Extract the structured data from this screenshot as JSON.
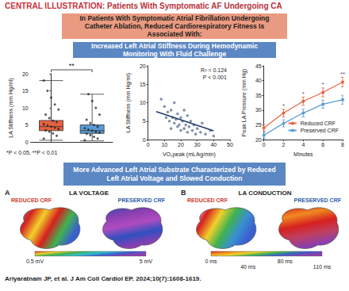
{
  "header": {
    "label": "CENTRAL ILLUSTRATION:",
    "title": "Patients With Symptomatic AF Undergoing CA"
  },
  "intro": "In Patients With Symptomatic Atrial Fibrillation Undergoing Catheter Ablation, Reduced Cardiorespiratory Fitness Is Associated With:",
  "section1": "Increased Left Atrial Stiffness During Hemodynamic Monitoring With Fluid Challenge",
  "chart_data": [
    {
      "type": "boxplot",
      "ylabel": "LA Stiffness (mm Hg/ml)",
      "categories": [
        null,
        null
      ],
      "series": [
        {
          "color": "#e8623f",
          "box": [
            0.5,
            3.3,
            4.5,
            6.3,
            18
          ],
          "points": [
            1,
            1.8,
            2.5,
            3,
            3.4,
            3.8,
            4.2,
            4.5,
            4.8,
            5.2,
            5.8,
            6.2,
            7,
            8,
            9.5,
            11,
            13,
            15,
            18
          ]
        },
        {
          "color": "#5b9bd5",
          "box": [
            0.3,
            2.5,
            3.3,
            5,
            14
          ],
          "points": [
            0.5,
            1,
            1.5,
            2,
            2.4,
            2.8,
            3,
            3.3,
            3.6,
            4,
            4.5,
            5,
            5.5,
            6.5,
            8,
            10,
            12,
            14
          ]
        }
      ],
      "ylim": [
        0,
        20
      ],
      "yticks": [
        0,
        5,
        10,
        15,
        20
      ],
      "annotation": "**"
    },
    {
      "type": "scatter",
      "xlabel": "VO₂peak (mL/kg/min)",
      "ylabel": "LA Stiffness (mm Hg/ml)",
      "color": "#6f7f99",
      "points": [
        [
          8,
          11
        ],
        [
          10,
          9
        ],
        [
          11,
          6
        ],
        [
          12,
          7.5
        ],
        [
          13,
          5
        ],
        [
          14,
          8
        ],
        [
          14,
          3
        ],
        [
          15,
          6
        ],
        [
          16,
          4.5
        ],
        [
          16,
          10
        ],
        [
          17,
          5.5
        ],
        [
          18,
          3.5
        ],
        [
          18,
          7
        ],
        [
          19,
          4
        ],
        [
          20,
          6
        ],
        [
          20,
          2.5
        ],
        [
          21,
          5
        ],
        [
          22,
          3
        ],
        [
          22,
          8
        ],
        [
          23,
          4
        ],
        [
          24,
          2
        ],
        [
          24,
          6.5
        ],
        [
          25,
          3.5
        ],
        [
          26,
          5
        ],
        [
          27,
          2.5
        ],
        [
          28,
          4
        ],
        [
          29,
          1.5
        ],
        [
          30,
          3
        ],
        [
          32,
          2
        ],
        [
          33,
          4.5
        ],
        [
          35,
          1.5
        ],
        [
          38,
          2.5
        ],
        [
          40,
          1
        ]
      ],
      "fit": {
        "x": [
          5,
          40
        ],
        "y": [
          7.6,
          2.4
        ],
        "color": "#1f3a6e"
      },
      "annotations": [
        "R² = 0.124",
        "P < 0.001"
      ],
      "xlim": [
        0,
        50
      ],
      "xticks": [
        0,
        10,
        20,
        30,
        40,
        50
      ],
      "ylim": [
        0,
        20
      ],
      "yticks": [
        0,
        5,
        10,
        15,
        20
      ]
    },
    {
      "type": "line",
      "xlabel": "Minutes",
      "ylabel": "Peak LA Pressure (mm Hg)",
      "x": [
        0,
        2,
        4,
        6,
        8
      ],
      "series": [
        {
          "name": "Reduced CRF",
          "color": "#e8623f",
          "values": [
            24,
            29,
            33,
            36,
            39.5
          ],
          "errors": [
            1.2,
            1.3,
            1.4,
            1.5,
            1.6
          ]
        },
        {
          "name": "Preserved CRF",
          "color": "#5b9bd5",
          "values": [
            21.5,
            25.5,
            29,
            32,
            33.5
          ],
          "errors": [
            1,
            1.2,
            1.3,
            1.4,
            1.5
          ]
        }
      ],
      "stars": {
        "x": [
          2,
          4,
          6,
          8
        ],
        "labels": [
          "*",
          "*",
          "*",
          "**"
        ]
      },
      "marker": "circle",
      "legend": "lower right",
      "xlim": [
        0,
        8
      ],
      "xticks": [
        0,
        2,
        4,
        6,
        8
      ],
      "ylim": [
        20,
        45
      ],
      "yticks": [
        20,
        25,
        30,
        35,
        40,
        45
      ]
    }
  ],
  "footnote": "*P < 0.05, **P < 0.01",
  "section2": "More Advanced Left Atrial Substrate Characterized by Reduced Left Atrial Voltage and Slowed Conduction",
  "maps": [
    {
      "letter": "A",
      "title": "LA VOLTAGE",
      "groups": [
        "REDUCED CRF",
        "PRESERVED CRF"
      ],
      "scale_labels": [
        "0.5 mV",
        "5 mV"
      ]
    },
    {
      "letter": "B",
      "title": "LA CONDUCTION",
      "groups": [
        "REDUCED CRF",
        "PRESERVED CRF"
      ],
      "scale_labels": [
        "0 ms",
        "40 ms",
        "80 ms",
        "110 ms"
      ]
    }
  ],
  "citation": "Ariyaratnam JP, et al. J Am Coll Cardiol EP. 2024;10(7):1608-1619."
}
